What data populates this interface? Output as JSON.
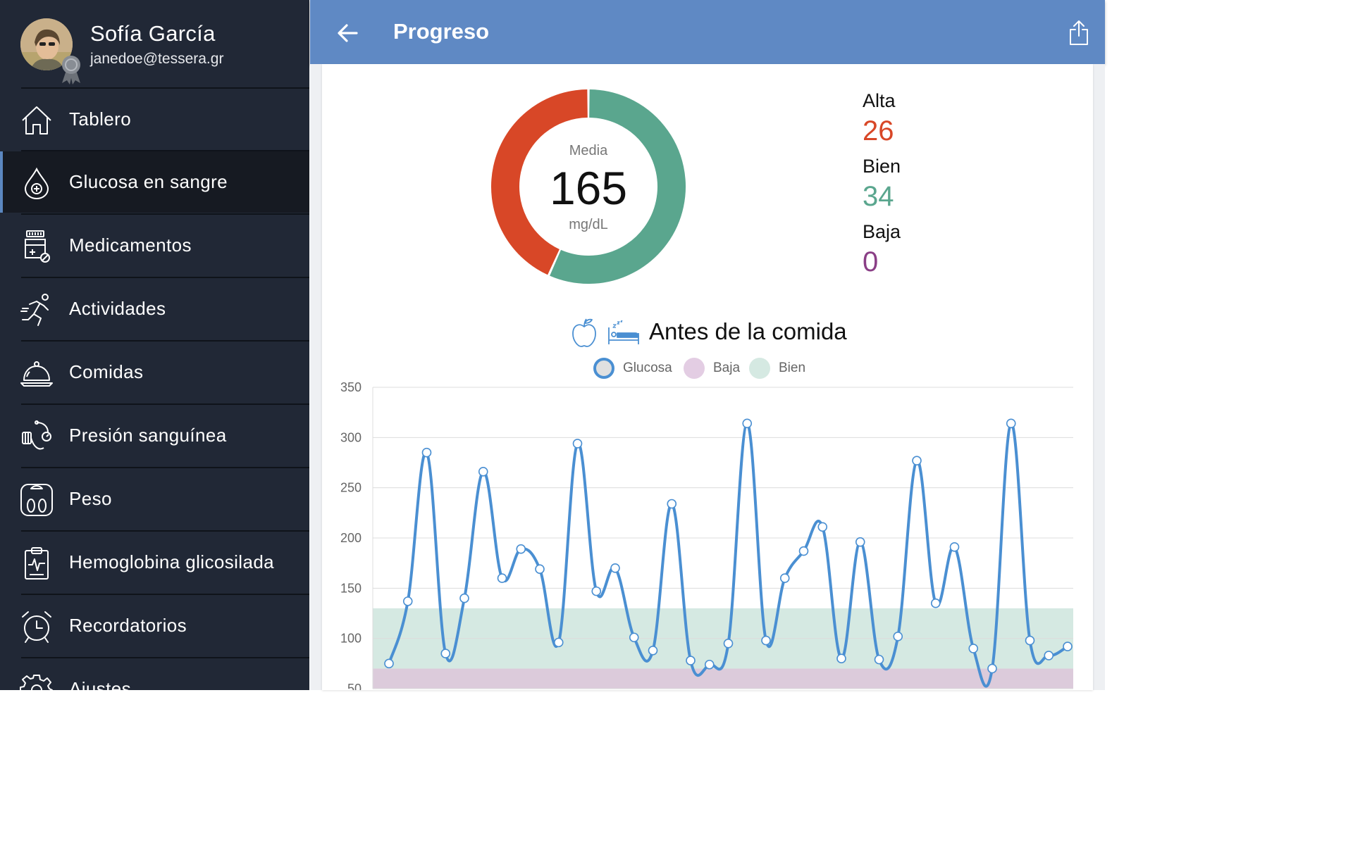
{
  "sidebar": {
    "user": {
      "name": "Sofía García",
      "email": "janedoe@tessera.gr"
    },
    "items": [
      {
        "label": "Tablero",
        "icon": "home-icon"
      },
      {
        "label": "Glucosa en sangre",
        "icon": "blood-drop-icon",
        "active": true
      },
      {
        "label": "Medicamentos",
        "icon": "medicine-bottle-icon"
      },
      {
        "label": "Actividades",
        "icon": "running-person-icon"
      },
      {
        "label": "Comidas",
        "icon": "food-cloche-icon"
      },
      {
        "label": "Presión sanguínea",
        "icon": "blood-pressure-icon"
      },
      {
        "label": "Peso",
        "icon": "weight-scale-icon"
      },
      {
        "label": "Hemoglobina glicosilada",
        "icon": "clipboard-chart-icon"
      },
      {
        "label": "Recordatorios",
        "icon": "alarm-clock-icon"
      },
      {
        "label": "Ajustes",
        "icon": "gear-icon"
      }
    ]
  },
  "appbar": {
    "title": "Progreso",
    "back_icon": "arrow-left-icon",
    "share_icon": "share-icon"
  },
  "summary": {
    "average_label": "Media",
    "average_value": "165",
    "unit": "mg/dL",
    "stats": [
      {
        "label": "Alta",
        "value": "26",
        "color": "#d84727"
      },
      {
        "label": "Bien",
        "value": "34",
        "color": "#5aa68e"
      },
      {
        "label": "Baja",
        "value": "0",
        "color": "#8a3f86"
      }
    ],
    "donut": {
      "high_fraction": 0.433,
      "ok_fraction": 0.567,
      "high_color": "#d84727",
      "ok_color": "#5aa68e"
    }
  },
  "section": {
    "title": "Antes de la comida",
    "icons": [
      "apple-icon",
      "bed-icon"
    ]
  },
  "chart_data": {
    "type": "line",
    "legend": [
      {
        "name": "Glucosa",
        "color": "#4a8fd2"
      },
      {
        "name": "Baja",
        "color": "#e3cde3"
      },
      {
        "name": "Bien",
        "color": "#d5e9e2"
      }
    ],
    "ylim": [
      50,
      350
    ],
    "yticks": [
      350,
      300,
      250,
      200,
      150,
      100,
      50
    ],
    "bands": [
      {
        "name": "Bien",
        "from": 70,
        "to": 130,
        "color": "#d5e9e2"
      },
      {
        "name": "Baja",
        "from": 50,
        "to": 70,
        "color": "#dccbdb"
      }
    ],
    "series": [
      {
        "name": "Glucosa",
        "values": [
          75,
          137,
          285,
          85,
          140,
          266,
          160,
          189,
          169,
          96,
          294,
          147,
          170,
          101,
          88,
          234,
          78,
          74,
          95,
          314,
          98,
          160,
          187,
          211,
          80,
          196,
          79,
          102,
          277,
          135,
          191,
          90,
          70,
          314,
          98,
          83,
          92
        ]
      }
    ]
  }
}
